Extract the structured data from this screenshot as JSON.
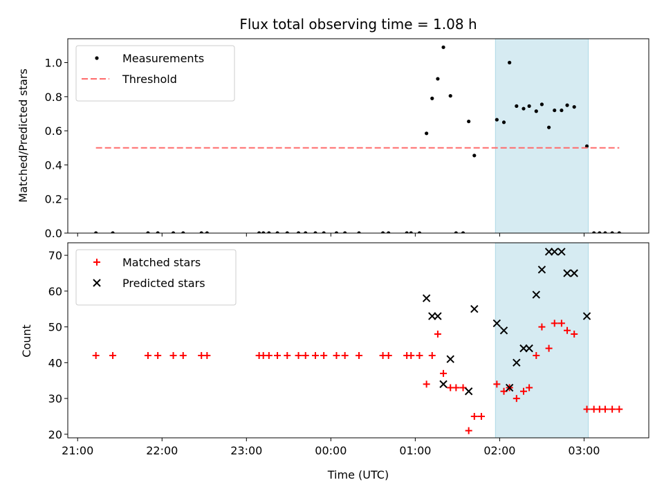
{
  "chart_data": [
    {
      "type": "scatter",
      "title": "Flux total observing time = 1.08 h",
      "ylabel": "Matched/Predicted stars",
      "xlim": [
        "20:53",
        "03:46"
      ],
      "ylim": [
        0,
        1.14
      ],
      "yticks": [
        "0.0",
        "0.2",
        "0.4",
        "0.6",
        "0.8",
        "1.0"
      ],
      "legend_position": "top-left",
      "shaded_interval": [
        "01:57",
        "03:03"
      ],
      "series": [
        {
          "name": "Measurements",
          "marker": "dot",
          "color": "#000000",
          "points": [
            [
              "21:13",
              0
            ],
            [
              "21:25",
              0
            ],
            [
              "21:50",
              0
            ],
            [
              "21:57",
              0
            ],
            [
              "22:08",
              0
            ],
            [
              "22:15",
              0
            ],
            [
              "22:28",
              0
            ],
            [
              "22:32",
              0
            ],
            [
              "23:09",
              0
            ],
            [
              "23:12",
              0
            ],
            [
              "23:16",
              0
            ],
            [
              "23:22",
              0
            ],
            [
              "23:29",
              0
            ],
            [
              "23:37",
              0
            ],
            [
              "23:42",
              0
            ],
            [
              "23:49",
              0
            ],
            [
              "23:55",
              0
            ],
            [
              "00:04",
              0
            ],
            [
              "00:10",
              0
            ],
            [
              "00:20",
              0
            ],
            [
              "00:37",
              0
            ],
            [
              "00:41",
              0
            ],
            [
              "00:54",
              0
            ],
            [
              "00:57",
              0
            ],
            [
              "01:03",
              0
            ],
            [
              "01:08",
              0.585
            ],
            [
              "01:12",
              0.79
            ],
            [
              "01:16",
              0.905
            ],
            [
              "01:20",
              1.09
            ],
            [
              "01:25",
              0.805
            ],
            [
              "01:29",
              0
            ],
            [
              "01:34",
              0
            ],
            [
              "01:38",
              0.655
            ],
            [
              "01:42",
              0.455
            ],
            [
              "01:58",
              0.665
            ],
            [
              "02:03",
              0.65
            ],
            [
              "02:07",
              1.0
            ],
            [
              "02:12",
              0.745
            ],
            [
              "02:17",
              0.73
            ],
            [
              "02:21",
              0.745
            ],
            [
              "02:26",
              0.715
            ],
            [
              "02:30",
              0.755
            ],
            [
              "02:35",
              0.62
            ],
            [
              "02:39",
              0.72
            ],
            [
              "02:44",
              0.72
            ],
            [
              "02:48",
              0.75
            ],
            [
              "02:53",
              0.74
            ],
            [
              "03:02",
              0.51
            ],
            [
              "03:07",
              0
            ],
            [
              "03:11",
              0
            ],
            [
              "03:15",
              0
            ],
            [
              "03:20",
              0
            ],
            [
              "03:25",
              0
            ]
          ]
        },
        {
          "name": "Threshold",
          "line_style": "dashed",
          "color": "#ff6b6b",
          "x_range": [
            "21:13",
            "03:25"
          ],
          "value": 0.5
        }
      ]
    },
    {
      "type": "scatter",
      "xlabel": "Time (UTC)",
      "ylabel": "Count",
      "xlim": [
        "20:53",
        "03:46"
      ],
      "ylim": [
        19,
        73.5
      ],
      "xticks": [
        "21:00",
        "22:00",
        "23:00",
        "00:00",
        "01:00",
        "02:00",
        "03:00"
      ],
      "yticks": [
        "20",
        "30",
        "40",
        "50",
        "60",
        "70"
      ],
      "legend_position": "top-left",
      "shaded_interval": [
        "01:57",
        "03:03"
      ],
      "series": [
        {
          "name": "Matched stars",
          "marker": "plus",
          "color": "#ff0000",
          "points": [
            [
              "21:13",
              42
            ],
            [
              "21:25",
              42
            ],
            [
              "21:50",
              42
            ],
            [
              "21:57",
              42
            ],
            [
              "22:08",
              42
            ],
            [
              "22:15",
              42
            ],
            [
              "22:28",
              42
            ],
            [
              "22:32",
              42
            ],
            [
              "23:09",
              42
            ],
            [
              "23:12",
              42
            ],
            [
              "23:16",
              42
            ],
            [
              "23:22",
              42
            ],
            [
              "23:29",
              42
            ],
            [
              "23:37",
              42
            ],
            [
              "23:42",
              42
            ],
            [
              "23:49",
              42
            ],
            [
              "23:55",
              42
            ],
            [
              "00:04",
              42
            ],
            [
              "00:10",
              42
            ],
            [
              "00:20",
              42
            ],
            [
              "00:37",
              42
            ],
            [
              "00:41",
              42
            ],
            [
              "00:54",
              42
            ],
            [
              "00:57",
              42
            ],
            [
              "01:03",
              42
            ],
            [
              "01:08",
              34
            ],
            [
              "01:12",
              42
            ],
            [
              "01:16",
              48
            ],
            [
              "01:20",
              37
            ],
            [
              "01:25",
              33
            ],
            [
              "01:29",
              33
            ],
            [
              "01:34",
              33
            ],
            [
              "01:38",
              21
            ],
            [
              "01:42",
              25
            ],
            [
              "01:47",
              25
            ],
            [
              "01:58",
              34
            ],
            [
              "02:03",
              32
            ],
            [
              "02:07",
              33
            ],
            [
              "02:12",
              30
            ],
            [
              "02:17",
              32
            ],
            [
              "02:21",
              33
            ],
            [
              "02:26",
              42
            ],
            [
              "02:30",
              50
            ],
            [
              "02:35",
              44
            ],
            [
              "02:39",
              51
            ],
            [
              "02:44",
              51
            ],
            [
              "02:48",
              49
            ],
            [
              "02:53",
              48
            ],
            [
              "03:02",
              27
            ],
            [
              "03:07",
              27
            ],
            [
              "03:11",
              27
            ],
            [
              "03:15",
              27
            ],
            [
              "03:20",
              27
            ],
            [
              "03:25",
              27
            ]
          ]
        },
        {
          "name": "Predicted stars",
          "marker": "x",
          "color": "#000000",
          "points": [
            [
              "01:08",
              58
            ],
            [
              "01:12",
              53
            ],
            [
              "01:16",
              53
            ],
            [
              "01:20",
              34
            ],
            [
              "01:25",
              41
            ],
            [
              "01:38",
              32
            ],
            [
              "01:42",
              55
            ],
            [
              "01:58",
              51
            ],
            [
              "02:03",
              49
            ],
            [
              "02:07",
              33
            ],
            [
              "02:12",
              40
            ],
            [
              "02:17",
              44
            ],
            [
              "02:21",
              44
            ],
            [
              "02:26",
              59
            ],
            [
              "02:30",
              66
            ],
            [
              "02:35",
              71
            ],
            [
              "02:39",
              71
            ],
            [
              "02:44",
              71
            ],
            [
              "02:48",
              65
            ],
            [
              "02:53",
              65
            ],
            [
              "03:02",
              53
            ]
          ]
        }
      ]
    }
  ]
}
